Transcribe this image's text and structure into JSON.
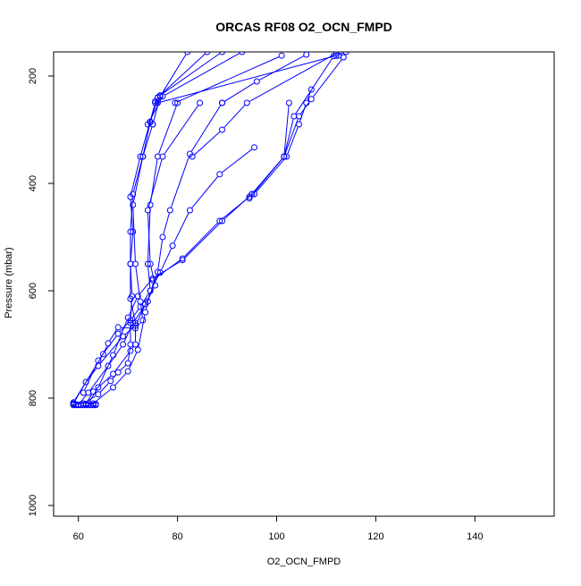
{
  "chart_data": {
    "type": "line",
    "title": "ORCAS RF08 O2_OCN_FMPD",
    "xlabel": "O2_OCN_FMPD",
    "ylabel": "Pressure (mbar)",
    "xlim": [
      55,
      156
    ],
    "ylim": [
      1020,
      155
    ],
    "y_inverted": true,
    "x_ticks": [
      60,
      80,
      100,
      120,
      140
    ],
    "y_ticks": [
      200,
      400,
      600,
      800,
      1000
    ],
    "x_tick_labels": [
      "60",
      "80",
      "100",
      "120",
      "140"
    ],
    "y_tick_labels": [
      "200",
      "400",
      "600",
      "800",
      "1000"
    ],
    "grid": false,
    "legend": "none",
    "series_color": "#0000ff",
    "marker": "open-circle",
    "series": [
      {
        "points": [
          [
            76,
            240
          ],
          [
            74.5,
            285
          ],
          [
            73,
            350
          ],
          [
            71,
            420
          ],
          [
            70.5,
            490
          ],
          [
            70.5,
            550
          ],
          [
            70.8,
            610
          ],
          [
            70.5,
            660
          ],
          [
            70.5,
            700
          ],
          [
            70,
            735
          ],
          [
            68,
            752
          ],
          [
            66.5,
            768
          ],
          [
            64,
            793
          ],
          [
            61,
            810
          ],
          [
            59,
            811
          ]
        ]
      },
      {
        "points": [
          [
            75.5,
            250
          ],
          [
            72.5,
            350
          ],
          [
            70.5,
            425
          ],
          [
            71,
            490
          ],
          [
            70.5,
            550
          ],
          [
            70.5,
            615
          ],
          [
            71.5,
            660
          ],
          [
            71.5,
            700
          ],
          [
            70.5,
            712
          ],
          [
            67,
            755
          ],
          [
            63,
            788
          ],
          [
            61.5,
            811
          ],
          [
            63.5,
            811
          ]
        ]
      },
      {
        "points": [
          [
            75,
            290
          ],
          [
            73,
            350
          ],
          [
            71,
            440
          ],
          [
            71.5,
            550
          ],
          [
            72.5,
            620
          ],
          [
            73,
            655
          ],
          [
            71.5,
            670
          ],
          [
            68,
            668
          ],
          [
            66,
            698
          ],
          [
            65,
            718
          ],
          [
            59,
            808
          ]
        ]
      },
      {
        "points": [
          [
            80,
            250
          ],
          [
            76,
            350
          ],
          [
            74.5,
            440
          ],
          [
            74,
            550
          ],
          [
            74.5,
            600
          ],
          [
            73.5,
            640
          ],
          [
            72,
            710
          ],
          [
            70,
            750
          ],
          [
            67,
            780
          ],
          [
            63,
            810
          ]
        ]
      },
      {
        "points": [
          [
            84.5,
            250
          ],
          [
            77,
            350
          ],
          [
            74,
            450
          ],
          [
            74.5,
            550
          ],
          [
            75.5,
            590
          ],
          [
            73.5,
            625
          ],
          [
            71.5,
            665
          ],
          [
            69,
            685
          ],
          [
            64,
            740
          ],
          [
            61.5,
            770
          ],
          [
            59,
            810
          ]
        ]
      },
      {
        "points": [
          [
            89,
            250
          ],
          [
            82.5,
            345
          ],
          [
            78.5,
            450
          ],
          [
            77,
            500
          ],
          [
            76,
            565
          ],
          [
            74,
            620
          ],
          [
            71,
            660
          ],
          [
            69,
            700
          ],
          [
            66,
            740
          ],
          [
            62,
            790
          ],
          [
            60,
            812
          ]
        ]
      },
      {
        "points": [
          [
            95.5,
            333
          ],
          [
            88.5,
            383
          ],
          [
            82.5,
            450
          ],
          [
            79,
            516
          ],
          [
            76.5,
            566
          ],
          [
            74.5,
            600
          ],
          [
            72.5,
            630
          ],
          [
            70.5,
            655
          ],
          [
            68,
            680
          ],
          [
            64,
            730
          ],
          [
            61,
            790
          ]
        ]
      },
      {
        "points": [
          [
            102.5,
            250
          ],
          [
            101.5,
            350
          ],
          [
            95,
            420
          ],
          [
            89,
            470
          ],
          [
            81,
            543
          ],
          [
            75,
            577
          ],
          [
            72,
            610
          ],
          [
            70,
            650
          ],
          [
            67,
            720
          ],
          [
            64,
            780
          ],
          [
            62,
            810
          ]
        ]
      },
      {
        "points": [
          [
            107,
            225
          ],
          [
            106,
            250
          ],
          [
            104.5,
            290
          ],
          [
            102,
            350
          ],
          [
            95.5,
            420
          ],
          [
            94.5,
            425
          ],
          [
            88.5,
            470
          ],
          [
            81,
            540
          ],
          [
            75,
            580
          ]
        ]
      },
      {
        "points": [
          [
            112.5,
            162
          ],
          [
            113.5,
            165
          ],
          [
            107,
            243
          ],
          [
            104.5,
            275
          ],
          [
            101.5,
            350
          ],
          [
            94.5,
            428
          ]
        ]
      },
      {
        "points": [
          [
            111.5,
            163
          ],
          [
            103.5,
            275
          ],
          [
            101.5,
            350
          ],
          [
            95,
            420
          ]
        ]
      },
      {
        "points": [
          [
            114,
            155
          ],
          [
            112,
            162
          ],
          [
            76,
            250
          ]
        ]
      },
      {
        "points": [
          [
            101,
            162
          ],
          [
            79.5,
            250
          ]
        ]
      },
      {
        "points": [
          [
            112,
            158
          ],
          [
            94,
            250
          ],
          [
            89,
            300
          ],
          [
            83,
            350
          ]
        ]
      },
      {
        "points": [
          [
            106,
            160
          ],
          [
            96,
            210
          ],
          [
            89,
            250
          ]
        ]
      },
      {
        "points": [
          [
            93,
            155
          ],
          [
            77,
            238
          ],
          [
            74,
            290
          ]
        ]
      },
      {
        "points": [
          [
            89,
            155
          ],
          [
            76.5,
            236
          ],
          [
            75.5,
            247
          ]
        ]
      },
      {
        "points": [
          [
            86,
            155
          ],
          [
            76,
            240
          ],
          [
            74.5,
            286
          ]
        ]
      },
      {
        "points": [
          [
            82,
            155
          ],
          [
            76.5,
            238
          ],
          [
            75,
            290
          ]
        ]
      },
      {
        "points": [
          [
            59,
            813
          ],
          [
            59.5,
            813
          ],
          [
            60,
            813
          ],
          [
            60.5,
            813
          ],
          [
            61,
            813
          ],
          [
            61.5,
            813
          ],
          [
            62,
            813
          ],
          [
            62.5,
            813
          ],
          [
            63,
            813
          ],
          [
            63.5,
            813
          ]
        ]
      }
    ]
  }
}
